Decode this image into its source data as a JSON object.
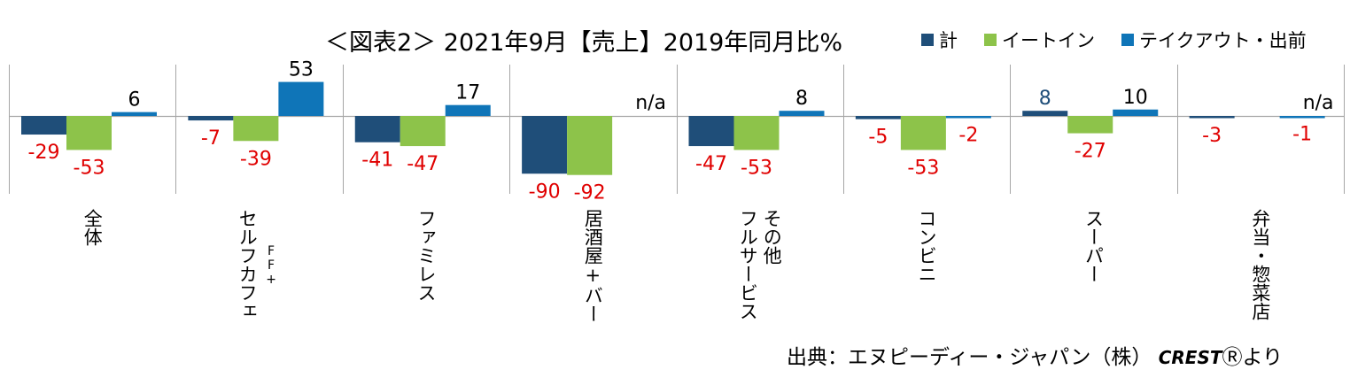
{
  "title": "＜図表2＞ 2021年9月【売上】2019年同月比%",
  "source": {
    "prefix": "出典：エヌピーディー・ジャパン（株）",
    "brand": "CREST",
    "brand_mark": "Ⓡ",
    "suffix": "より"
  },
  "colors": {
    "kei": "#1f4e79",
    "eat_in": "#8dc34a",
    "takeout": "#0f75b8",
    "negative_label": "#e00000",
    "positive_label": "#000000",
    "highlight_label": "#1f4e79",
    "axis": "#a6a6a6"
  },
  "chart_data": {
    "type": "bar",
    "ylim": [
      -100,
      60
    ],
    "grid": false,
    "legend_position": "top-right",
    "categories": [
      "全体",
      "セルフカフェ FF+",
      "ファミレス",
      "居酒屋+バー",
      "フルサービス その他",
      "コンビニ",
      "スーパー",
      "弁当・惣菜店"
    ],
    "category_lines": [
      [
        [
          "全体"
        ]
      ],
      [
        [
          "セルフカフェ"
        ],
        [
          "FF+"
        ]
      ],
      [
        [
          "ファミレス"
        ]
      ],
      [
        [
          "居酒屋+バー"
        ]
      ],
      [
        [
          "フルサービス"
        ],
        [
          "その他"
        ]
      ],
      [
        [
          "コンビニ"
        ]
      ],
      [
        [
          "スーパー"
        ]
      ],
      [
        [
          "弁当・惣菜店"
        ]
      ]
    ],
    "series": [
      {
        "name": "計",
        "values": [
          -29,
          -7,
          -41,
          -90,
          -47,
          -5,
          8,
          -3
        ],
        "labels": [
          "-29",
          "-7",
          "-41",
          "-90",
          "-47",
          "-5",
          "8",
          "-3"
        ]
      },
      {
        "name": "イートイン",
        "values": [
          -53,
          -39,
          -47,
          -92,
          -53,
          -53,
          -27,
          null
        ],
        "labels": [
          "-53",
          "-39",
          "-47",
          "-92",
          "-53",
          "-53",
          "-27",
          null
        ]
      },
      {
        "name": "テイクアウト・出前",
        "values": [
          6,
          53,
          17,
          null,
          8,
          -2,
          10,
          -1
        ],
        "labels": [
          "6",
          "53",
          "17",
          null,
          "8",
          "-2",
          "10",
          "-1"
        ]
      }
    ],
    "na_label": "n/a",
    "na_categories": [
      3,
      7
    ]
  }
}
